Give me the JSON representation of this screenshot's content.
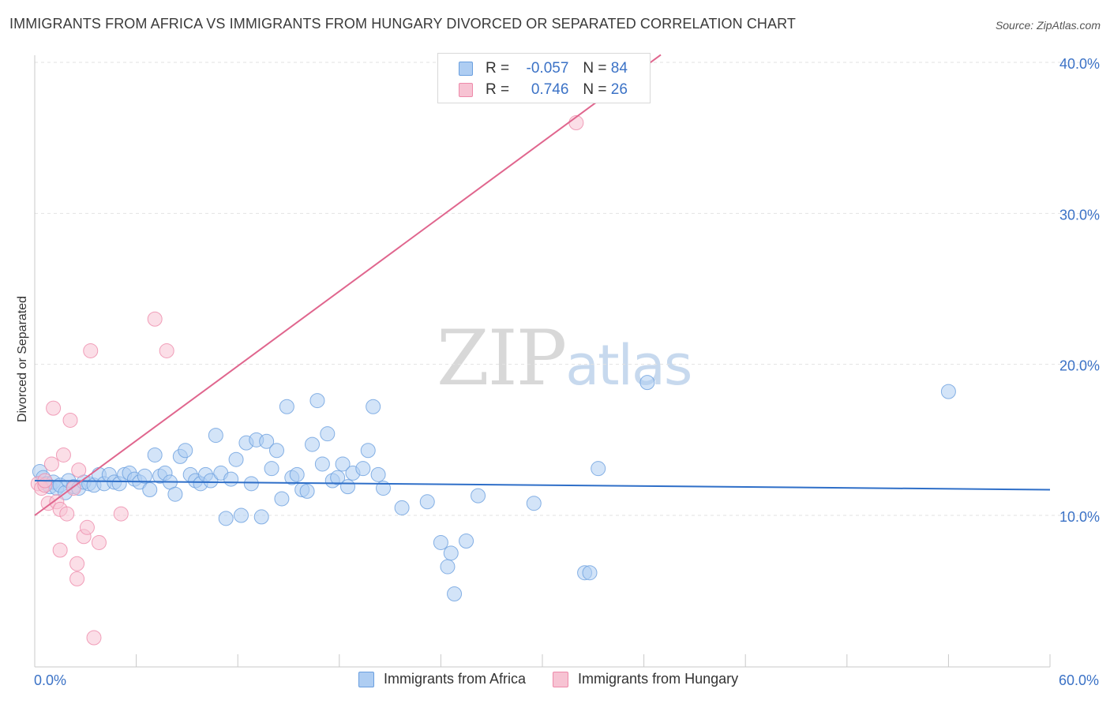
{
  "title": "IMMIGRANTS FROM AFRICA VS IMMIGRANTS FROM HUNGARY DIVORCED OR SEPARATED CORRELATION CHART",
  "source": "Source: ZipAtlas.com",
  "watermark": {
    "zip": "ZIP",
    "atlas": "atlas"
  },
  "colors": {
    "africa": "#6a9fdf",
    "africa_fill": "#aecdf2",
    "hungary": "#ee8aaa",
    "hungary_fill": "#f7c3d3",
    "accent": "#3b72c6"
  },
  "legend_top": {
    "rows": [
      {
        "r_label": "R =",
        "r_value": "-0.057",
        "n_label": "N =",
        "n_value": "84"
      },
      {
        "r_label": "R =",
        "r_value": "0.746",
        "n_label": "N =",
        "n_value": "26"
      }
    ]
  },
  "legend_bottom": {
    "items": [
      "Immigrants from Africa",
      "Immigrants from Hungary"
    ]
  },
  "chart_data": {
    "type": "scatter",
    "title": "IMMIGRANTS FROM AFRICA VS IMMIGRANTS FROM HUNGARY DIVORCED OR SEPARATED CORRELATION CHART",
    "xlabel": "",
    "ylabel": "Divorced or Separated",
    "xlim": [
      0,
      60
    ],
    "ylim": [
      0,
      42
    ],
    "x_tick_labels": [
      "0.0%",
      "60.0%"
    ],
    "y_ticks": [
      10,
      20,
      30,
      40
    ],
    "y_tick_labels": [
      "10.0%",
      "20.0%",
      "30.0%",
      "40.0%"
    ],
    "grid": true,
    "series": [
      {
        "name": "Immigrants from Africa",
        "color": "#6a9fdf",
        "trend": {
          "x": [
            0,
            60
          ],
          "y": [
            12.3,
            11.7
          ]
        },
        "points": [
          [
            0.3,
            12.9
          ],
          [
            0.5,
            12.5
          ],
          [
            0.7,
            12.1
          ],
          [
            0.9,
            11.9
          ],
          [
            1.1,
            12.2
          ],
          [
            1.3,
            11.8
          ],
          [
            1.5,
            12.0
          ],
          [
            1.8,
            11.5
          ],
          [
            2.0,
            12.3
          ],
          [
            2.3,
            11.9
          ],
          [
            2.6,
            11.8
          ],
          [
            2.9,
            12.2
          ],
          [
            3.2,
            12.1
          ],
          [
            3.5,
            12.0
          ],
          [
            3.8,
            12.7
          ],
          [
            4.1,
            12.1
          ],
          [
            4.4,
            12.7
          ],
          [
            4.7,
            12.2
          ],
          [
            5.0,
            12.1
          ],
          [
            5.3,
            12.7
          ],
          [
            5.6,
            12.8
          ],
          [
            5.9,
            12.4
          ],
          [
            6.2,
            12.2
          ],
          [
            6.5,
            12.6
          ],
          [
            6.8,
            11.7
          ],
          [
            7.1,
            14.0
          ],
          [
            7.4,
            12.6
          ],
          [
            7.7,
            12.8
          ],
          [
            8.0,
            12.2
          ],
          [
            8.3,
            11.4
          ],
          [
            8.6,
            13.9
          ],
          [
            8.9,
            14.3
          ],
          [
            9.2,
            12.7
          ],
          [
            9.5,
            12.3
          ],
          [
            9.8,
            12.1
          ],
          [
            10.1,
            12.7
          ],
          [
            10.4,
            12.3
          ],
          [
            10.7,
            15.3
          ],
          [
            11.0,
            12.8
          ],
          [
            11.3,
            9.8
          ],
          [
            11.6,
            12.4
          ],
          [
            11.9,
            13.7
          ],
          [
            12.2,
            10.0
          ],
          [
            12.5,
            14.8
          ],
          [
            12.8,
            12.1
          ],
          [
            13.1,
            15.0
          ],
          [
            13.4,
            9.9
          ],
          [
            13.7,
            14.9
          ],
          [
            14.0,
            13.1
          ],
          [
            14.3,
            14.3
          ],
          [
            14.6,
            11.1
          ],
          [
            14.9,
            17.2
          ],
          [
            15.2,
            12.5
          ],
          [
            15.5,
            12.7
          ],
          [
            15.8,
            11.7
          ],
          [
            16.1,
            11.6
          ],
          [
            16.4,
            14.7
          ],
          [
            16.7,
            17.6
          ],
          [
            17.0,
            13.4
          ],
          [
            17.3,
            15.4
          ],
          [
            17.6,
            12.3
          ],
          [
            17.9,
            12.5
          ],
          [
            18.2,
            13.4
          ],
          [
            18.5,
            11.9
          ],
          [
            18.8,
            12.8
          ],
          [
            19.4,
            13.1
          ],
          [
            19.7,
            14.3
          ],
          [
            20.0,
            17.2
          ],
          [
            20.3,
            12.7
          ],
          [
            20.6,
            11.8
          ],
          [
            21.7,
            10.5
          ],
          [
            23.2,
            10.9
          ],
          [
            24.0,
            8.2
          ],
          [
            24.4,
            6.6
          ],
          [
            24.6,
            7.5
          ],
          [
            24.8,
            4.8
          ],
          [
            25.5,
            8.3
          ],
          [
            26.2,
            11.3
          ],
          [
            29.5,
            10.8
          ],
          [
            32.5,
            6.2
          ],
          [
            32.8,
            6.2
          ],
          [
            33.3,
            13.1
          ],
          [
            36.2,
            18.8
          ],
          [
            54.0,
            18.2
          ]
        ]
      },
      {
        "name": "Immigrants from Hungary",
        "color": "#ee8aaa",
        "trend": {
          "x": [
            0,
            37
          ],
          "y": [
            10.0,
            40.5
          ]
        },
        "points": [
          [
            0.2,
            12.1
          ],
          [
            0.4,
            11.8
          ],
          [
            0.6,
            12.0
          ],
          [
            0.8,
            10.8
          ],
          [
            1.0,
            13.4
          ],
          [
            1.1,
            17.1
          ],
          [
            1.3,
            10.9
          ],
          [
            1.5,
            10.4
          ],
          [
            1.7,
            14.0
          ],
          [
            1.9,
            10.1
          ],
          [
            2.1,
            16.3
          ],
          [
            2.3,
            11.8
          ],
          [
            1.5,
            7.7
          ],
          [
            2.5,
            6.8
          ],
          [
            2.5,
            5.8
          ],
          [
            2.6,
            13.0
          ],
          [
            2.9,
            8.6
          ],
          [
            3.1,
            9.2
          ],
          [
            3.3,
            20.9
          ],
          [
            3.5,
            1.9
          ],
          [
            3.8,
            8.2
          ],
          [
            5.1,
            10.1
          ],
          [
            7.1,
            23.0
          ],
          [
            7.8,
            20.9
          ],
          [
            32.0,
            36.0
          ],
          [
            0.6,
            12.3
          ]
        ]
      }
    ]
  }
}
